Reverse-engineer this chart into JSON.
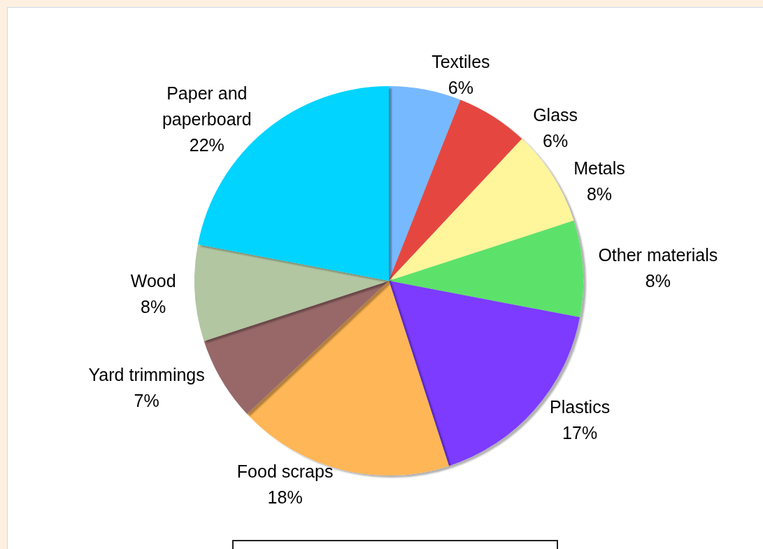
{
  "chart_data": {
    "type": "pie",
    "categories": [
      "Textiles",
      "Glass",
      "Metals",
      "Other materials",
      "Plastics",
      "Food scraps",
      "Yard trimmings",
      "Wood",
      "Paper and paperboard"
    ],
    "values": [
      6,
      6,
      8,
      8,
      17,
      18,
      7,
      8,
      22
    ],
    "value_labels": [
      "6%",
      "6%",
      "8%",
      "8%",
      "17%",
      "18%",
      "7%",
      "8%",
      "22%"
    ],
    "colors": [
      "#77b9ff",
      "#e5463f",
      "#fff59a",
      "#5ce26a",
      "#7b3aff",
      "#ffb657",
      "#986868",
      "#b1c6a1",
      "#00d4ff"
    ],
    "legend": false
  }
}
